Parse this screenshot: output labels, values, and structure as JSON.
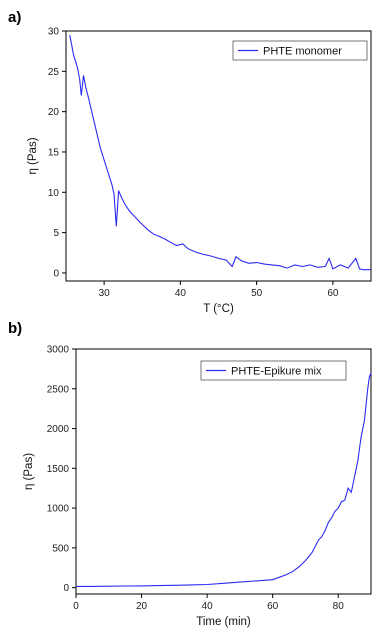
{
  "figure": {
    "panel_a_label": "a)",
    "panel_b_label": "b)"
  },
  "chart_data": [
    {
      "type": "line",
      "panel": "a)",
      "xlabel": "T (°C)",
      "ylabel": "η (Pas)",
      "xlim": [
        25,
        65
      ],
      "ylim": [
        -1,
        30
      ],
      "xticks": [
        30,
        40,
        50,
        60
      ],
      "yticks": [
        0,
        5,
        10,
        15,
        20,
        25,
        30
      ],
      "grid": false,
      "legend_position": "top-right",
      "series": [
        {
          "name": "PHTE monomer",
          "color": "#2b2bf5",
          "x": [
            25.5,
            26.0,
            26.5,
            26.8,
            27.0,
            27.3,
            27.6,
            28.0,
            28.5,
            29.0,
            29.5,
            30.0,
            30.5,
            31.0,
            31.3,
            31.6,
            31.9,
            32.3,
            32.8,
            33.3,
            34.0,
            34.5,
            35.0,
            35.8,
            36.5,
            37.3,
            38.0,
            38.7,
            39.5,
            40.3,
            41.0,
            42.0,
            43.0,
            44.0,
            45.0,
            46.0,
            46.8,
            47.3,
            48.0,
            49.0,
            50.0,
            51.0,
            52.0,
            53.0,
            54.0,
            55.0,
            56.0,
            57.0,
            58.0,
            59.0,
            59.5,
            60.0,
            61.0,
            62.0,
            63.0,
            63.5,
            64.0,
            65.0
          ],
          "y": [
            29.5,
            27.0,
            25.5,
            24.0,
            22.0,
            24.5,
            23.0,
            21.5,
            19.5,
            17.5,
            15.5,
            14.0,
            12.5,
            11.0,
            9.8,
            5.8,
            10.2,
            9.3,
            8.4,
            7.7,
            7.0,
            6.5,
            6.0,
            5.3,
            4.8,
            4.5,
            4.2,
            3.8,
            3.4,
            3.6,
            3.0,
            2.6,
            2.3,
            2.1,
            1.8,
            1.6,
            0.8,
            2.0,
            1.5,
            1.2,
            1.3,
            1.1,
            1.0,
            0.9,
            0.6,
            1.0,
            0.8,
            1.0,
            0.7,
            0.8,
            1.8,
            0.5,
            1.0,
            0.6,
            1.8,
            0.5,
            0.4,
            0.4
          ]
        }
      ]
    },
    {
      "type": "line",
      "panel": "b)",
      "xlabel": "Time (min)",
      "ylabel": "η (Pas)",
      "xlim": [
        0,
        90
      ],
      "ylim": [
        -80,
        3000
      ],
      "xticks": [
        0,
        20,
        40,
        60,
        80
      ],
      "yticks": [
        0,
        500,
        1000,
        1500,
        2000,
        2500,
        3000
      ],
      "grid": false,
      "legend_position": "top-right",
      "series": [
        {
          "name": "PHTE-Epikure mix",
          "color": "#2b2bf5",
          "x": [
            0,
            5,
            10,
            15,
            20,
            25,
            30,
            35,
            40,
            45,
            50,
            55,
            60,
            62,
            64,
            66,
            68,
            70,
            71,
            72,
            73,
            74,
            75,
            76,
            77,
            78,
            79,
            80,
            81,
            82,
            83,
            84,
            85,
            86,
            86.5,
            87,
            87.5,
            88,
            88.5,
            89,
            89.5,
            90
          ],
          "y": [
            15,
            15,
            18,
            20,
            22,
            25,
            30,
            35,
            40,
            55,
            70,
            85,
            100,
            130,
            160,
            200,
            260,
            340,
            390,
            440,
            520,
            600,
            640,
            720,
            820,
            880,
            960,
            1000,
            1080,
            1100,
            1250,
            1200,
            1400,
            1600,
            1750,
            1900,
            2000,
            2100,
            2300,
            2500,
            2650,
            2700
          ]
        }
      ]
    }
  ]
}
